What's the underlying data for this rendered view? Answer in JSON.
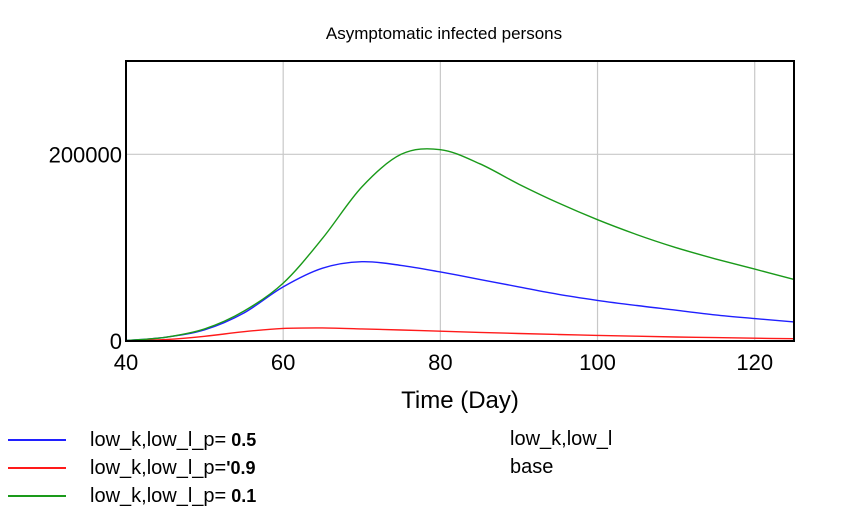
{
  "chart_data": {
    "type": "line",
    "title": "Asymptomatic infected persons",
    "xlabel": "Time (Day)",
    "ylabel": "",
    "xlim": [
      40,
      125
    ],
    "ylim": [
      0,
      300000
    ],
    "x_ticks": [
      "40",
      "60",
      "80",
      "100",
      "120"
    ],
    "y_ticks": [
      "0",
      "200000"
    ],
    "grid": true,
    "legend_placement": "bottom",
    "series": [
      {
        "name": "low_k,low_l_p= 0.5",
        "color": "#2020ff",
        "x": [
          40,
          45,
          50,
          55,
          60,
          65,
          70,
          75,
          80,
          85,
          90,
          95,
          100,
          105,
          110,
          115,
          120,
          125
        ],
        "y": [
          500,
          4000,
          12000,
          30000,
          58000,
          78000,
          85000,
          81000,
          74000,
          66000,
          58000,
          50000,
          43500,
          38000,
          33000,
          28000,
          24000,
          20500
        ]
      },
      {
        "name": "low_k,low_l_p= 0.9",
        "color": "#ff1a1a",
        "x": [
          40,
          45,
          50,
          55,
          60,
          65,
          70,
          75,
          80,
          85,
          90,
          95,
          100,
          105,
          110,
          115,
          120,
          125
        ],
        "y": [
          200,
          1500,
          5000,
          10000,
          13500,
          14000,
          13000,
          11800,
          10500,
          9200,
          8000,
          7000,
          6000,
          5100,
          4300,
          3600,
          3000,
          2500
        ]
      },
      {
        "name": "low_k,low_l_p= 0.1",
        "color": "#1a9a1a",
        "x": [
          40,
          45,
          50,
          55,
          60,
          65,
          70,
          75,
          80,
          85,
          90,
          95,
          100,
          105,
          110,
          115,
          120,
          125
        ],
        "y": [
          500,
          4000,
          13000,
          32000,
          62000,
          110000,
          165000,
          200000,
          205000,
          190000,
          168000,
          148000,
          130000,
          114000,
          100000,
          88000,
          77000,
          66000
        ]
      }
    ]
  },
  "legend": {
    "entries": [
      {
        "prefix": "low_k,low_l_p=",
        "value": " 0.5",
        "color": "#2020ff"
      },
      {
        "prefix": "low_k,low_l_p=",
        "value": "'0.9",
        "color": "#ff1a1a"
      },
      {
        "prefix": "low_k,low_l_p=",
        "value": " 0.1",
        "color": "#1a9a1a"
      }
    ],
    "extra_lines": [
      "low_k,low_l",
      "base"
    ]
  }
}
